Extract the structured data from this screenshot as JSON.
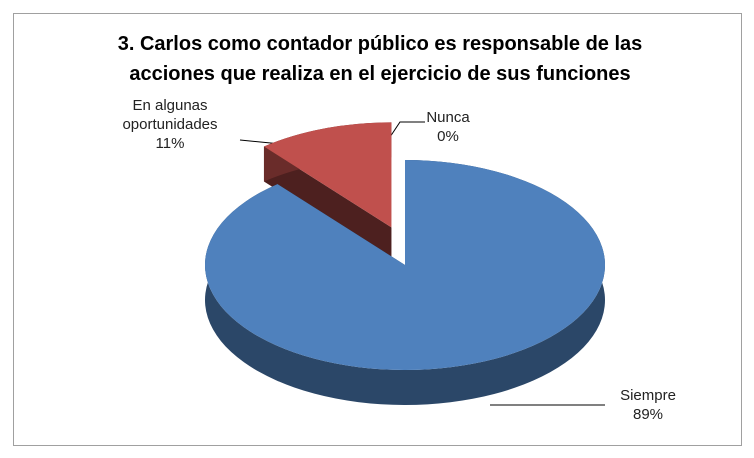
{
  "chart_data": {
    "type": "pie3d",
    "title": [
      "3.  Carlos como contador público es responsable de las",
      "acciones que realiza en el ejercicio de sus funciones"
    ],
    "categories": [
      "Siempre",
      "En algunas oportunidades",
      "Nunca"
    ],
    "values": [
      89,
      11,
      0
    ],
    "value_labels": [
      "89%",
      "11%",
      "0%"
    ],
    "colors": [
      "#4f81bd",
      "#c0504d",
      "#9bbb59"
    ],
    "exploded": [
      false,
      true,
      false
    ]
  }
}
